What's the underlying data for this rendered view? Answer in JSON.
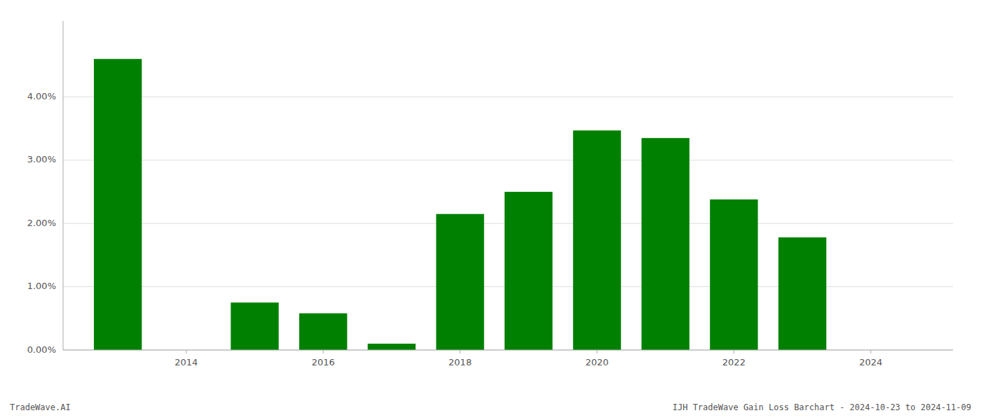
{
  "chart_data": {
    "type": "bar",
    "title": "IJH TradeWave Gain Loss Barchart - 2024-10-23 to 2024-11-09",
    "annotations": [
      "TradeWave.AI"
    ],
    "x": [
      2013,
      2015,
      2016,
      2017,
      2018,
      2019,
      2020,
      2021,
      2022,
      2023
    ],
    "values": [
      0.046,
      0.0075,
      0.0058,
      0.001,
      0.0215,
      0.025,
      0.0347,
      0.0335,
      0.0238,
      0.0178
    ],
    "color": "#008000",
    "xlim": [
      2012.2,
      2025.2
    ],
    "xticks": [
      2014,
      2016,
      2018,
      2020,
      2022,
      2024
    ],
    "ylim": [
      0,
      0.052
    ],
    "yticks": [
      {
        "value": 0.0,
        "label": "0.00%"
      },
      {
        "value": 0.01,
        "label": "1.00%"
      },
      {
        "value": 0.02,
        "label": "2.00%"
      },
      {
        "value": 0.03,
        "label": "3.00%"
      },
      {
        "value": 0.04,
        "label": "4.00%"
      }
    ],
    "grid": true
  }
}
